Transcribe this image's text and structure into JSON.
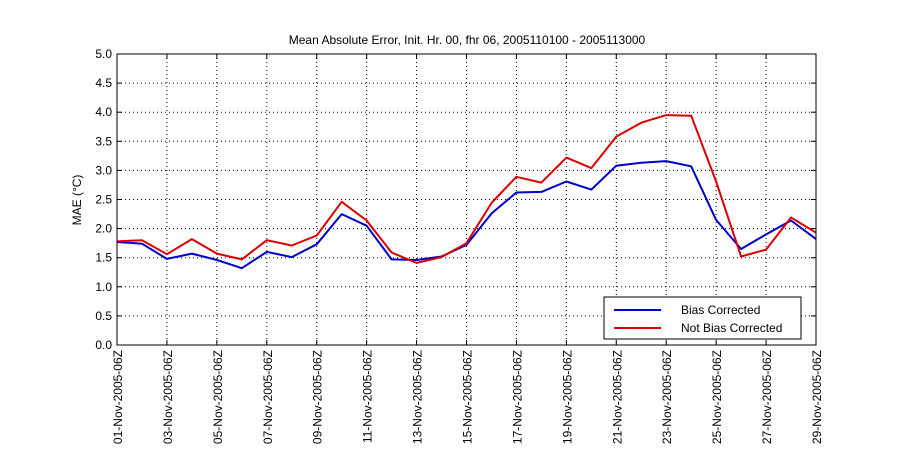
{
  "chart_data": {
    "type": "line",
    "title": "Mean Absolute Error, Init. Hr. 00, fhr 06, 2005110100 - 2005113000",
    "xlabel": "",
    "ylabel": "MAE (°C)",
    "ylim": [
      0,
      5
    ],
    "yticks": [
      "0.0",
      "0.5",
      "1.0",
      "1.5",
      "2.0",
      "2.5",
      "3.0",
      "3.5",
      "4.0",
      "4.5",
      "5.0"
    ],
    "grid": true,
    "legend_position": "bottom-right",
    "x": [
      "01-Nov",
      "02-Nov",
      "03-Nov",
      "04-Nov",
      "05-Nov",
      "06-Nov",
      "07-Nov",
      "08-Nov",
      "09-Nov",
      "10-Nov",
      "11-Nov",
      "12-Nov",
      "13-Nov",
      "14-Nov",
      "15-Nov",
      "16-Nov",
      "17-Nov",
      "18-Nov",
      "19-Nov",
      "20-Nov",
      "21-Nov",
      "22-Nov",
      "23-Nov",
      "24-Nov",
      "25-Nov",
      "26-Nov",
      "27-Nov",
      "28-Nov",
      "29-Nov"
    ],
    "xtick_labels": [
      "01-Nov-2005-06Z",
      "03-Nov-2005-06Z",
      "05-Nov-2005-06Z",
      "07-Nov-2005-06Z",
      "09-Nov-2005-06Z",
      "11-Nov-2005-06Z",
      "13-Nov-2005-06Z",
      "15-Nov-2005-06Z",
      "17-Nov-2005-06Z",
      "19-Nov-2005-06Z",
      "21-Nov-2005-06Z",
      "23-Nov-2005-06Z",
      "25-Nov-2005-06Z",
      "27-Nov-2005-06Z",
      "29-Nov-2005-06Z"
    ],
    "series": [
      {
        "name": "Bias Corrected",
        "color": "#0000cc",
        "values": [
          1.77,
          1.74,
          1.48,
          1.57,
          1.46,
          1.32,
          1.6,
          1.51,
          1.73,
          2.25,
          2.05,
          1.47,
          1.46,
          1.52,
          1.72,
          2.26,
          2.62,
          2.63,
          2.81,
          2.67,
          3.08,
          3.13,
          3.16,
          3.07,
          2.15,
          1.65,
          1.9,
          2.14,
          1.82
        ]
      },
      {
        "name": "Not Bias Corrected",
        "color": "#dd0000",
        "values": [
          1.78,
          1.8,
          1.56,
          1.82,
          1.57,
          1.47,
          1.8,
          1.71,
          1.88,
          2.46,
          2.14,
          1.59,
          1.41,
          1.51,
          1.75,
          2.44,
          2.89,
          2.79,
          3.22,
          3.04,
          3.58,
          3.82,
          3.95,
          3.94,
          2.81,
          1.52,
          1.64,
          2.19,
          1.93
        ]
      }
    ]
  }
}
